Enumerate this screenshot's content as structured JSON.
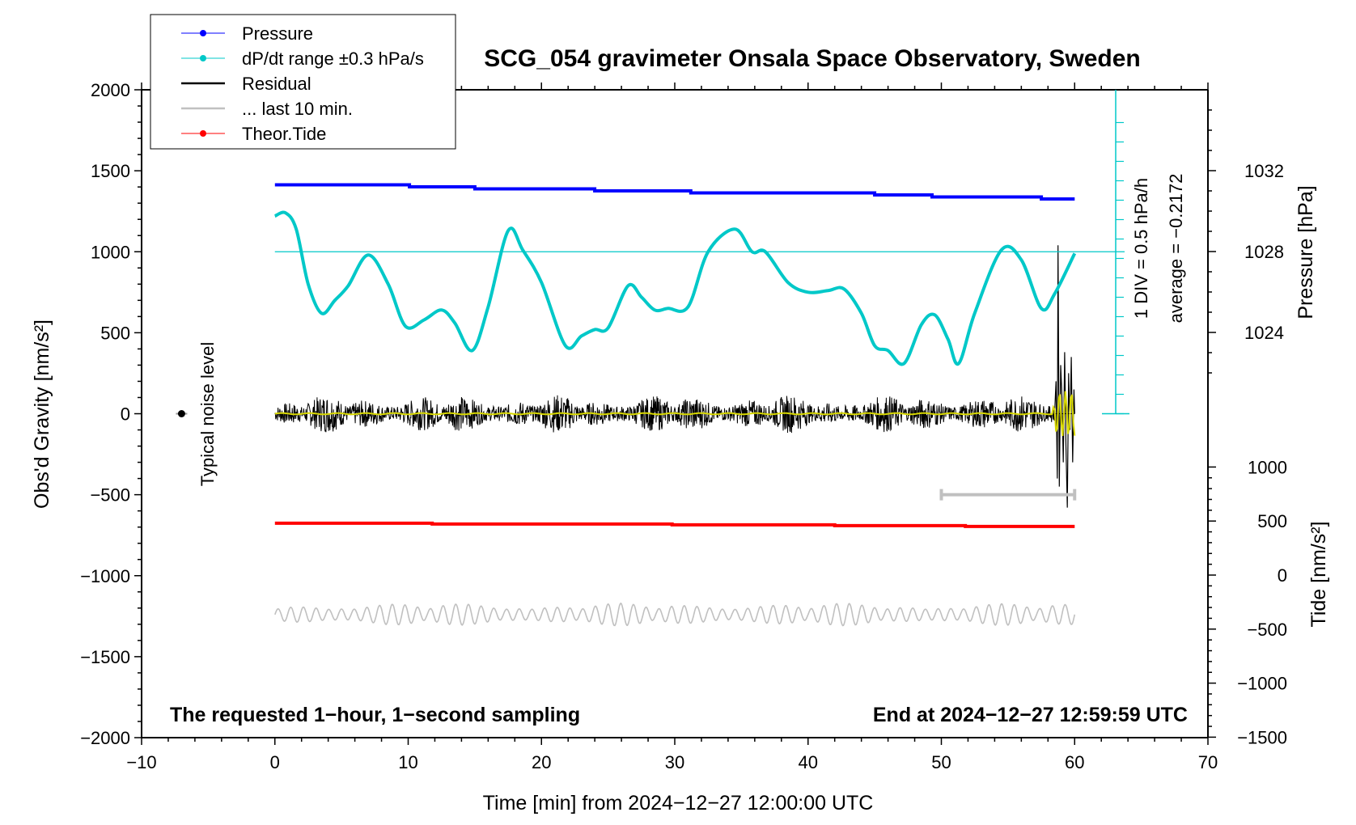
{
  "chart_data": {
    "type": "line",
    "title": "SCG_054 gravimeter Onsala Space Observatory, Sweden",
    "xlabel": "Time [min] from 2024−12−27 12:00:00 UTC",
    "ylabel_left": "Obs'd Gravity [nm/s²]",
    "ylabel_pressure": "Pressure [hPa]",
    "ylabel_tide": "Tide [nm/s²]",
    "xlim": [
      -10,
      70
    ],
    "ylim": [
      -2000,
      2000
    ],
    "x_ticks": [
      "−10",
      "0",
      "10",
      "20",
      "30",
      "40",
      "50",
      "60",
      "70"
    ],
    "y_ticks": [
      "−2000",
      "−1500",
      "−1000",
      "−500",
      "0",
      "500",
      "1000",
      "1500",
      "2000"
    ],
    "pressure_ticks": [
      "1024",
      "1028",
      "1032"
    ],
    "tide_ticks": [
      "−1500",
      "−1000",
      "−500",
      "0",
      "500",
      "1000"
    ],
    "legend_position": "top-left",
    "legend": [
      {
        "label": "Pressure",
        "color": "#0000ff",
        "marker": "dot"
      },
      {
        "label": "dP/dt range ±0.3 hPa/s",
        "color": "#00c8c8",
        "marker": "dot"
      },
      {
        "label": "Residual",
        "color": "#000000",
        "marker": "line"
      },
      {
        "label": "... last 10 min.",
        "color": "#c0c0c0",
        "marker": "line"
      },
      {
        "label": "Theor.Tide",
        "color": "#ff0000",
        "marker": "dot"
      }
    ],
    "series": [
      {
        "name": "Pressure",
        "color": "#0000ff",
        "axis": "pressure",
        "x": [
          0,
          10.1,
          10.1,
          15,
          15,
          24,
          24,
          31.2,
          31.2,
          45,
          45,
          49.3,
          49.3,
          57.5,
          57.5,
          60
        ],
        "values": [
          1031.3,
          1031.3,
          1031.2,
          1031.2,
          1031.1,
          1031.1,
          1031.0,
          1031.0,
          1030.9,
          1030.9,
          1030.8,
          1030.8,
          1030.7,
          1030.7,
          1030.6,
          1030.6
        ]
      },
      {
        "name": "dP/dt range ±0.3 hPa/s",
        "color": "#00c8c8",
        "axis": "gravity",
        "x": [
          0,
          0.8,
          1.6,
          2.5,
          3.5,
          4.5,
          5.5,
          7,
          8.5,
          9.8,
          11.2,
          12.5,
          13.5,
          14.8,
          16,
          17.5,
          18.6,
          20,
          21.8,
          23,
          24,
          25,
          26.5,
          27.5,
          28.5,
          29.5,
          31,
          32.5,
          34.5,
          35.8,
          36.8,
          38.5,
          40,
          41.5,
          42.7,
          44,
          45,
          46,
          47.2,
          48.5,
          49.5,
          50.5,
          51.3,
          52.5,
          54.5,
          56,
          57.5,
          58.5,
          60
        ],
        "values": [
          1220,
          1240,
          1140,
          800,
          620,
          700,
          790,
          980,
          800,
          540,
          580,
          640,
          560,
          390,
          660,
          1130,
          1010,
          810,
          420,
          480,
          520,
          530,
          790,
          720,
          640,
          650,
          660,
          1000,
          1140,
          1000,
          1000,
          810,
          750,
          760,
          770,
          620,
          420,
          390,
          310,
          550,
          610,
          460,
          310,
          620,
          1010,
          950,
          650,
          740,
          990
        ]
      },
      {
        "name": "Residual",
        "color": "#000000",
        "axis": "gravity",
        "x": [
          0,
          60
        ],
        "values": [
          0,
          0
        ],
        "noise_amplitude": 120,
        "burst_start": 58.5,
        "burst_range": [
          -580,
          1040
        ]
      },
      {
        "name": "... last 10 min.",
        "color": "#c0c0c0",
        "axis": "gravity",
        "x": [
          50,
          60
        ],
        "values": [
          -500,
          -500
        ]
      },
      {
        "name": "Theor.Tide",
        "color": "#ff0000",
        "axis": "tide",
        "x": [
          0,
          11.8,
          11.8,
          29.8,
          29.8,
          42,
          42,
          51.8,
          51.8,
          60
        ],
        "values": [
          -676,
          -676,
          -681,
          -681,
          -686,
          -686,
          -691,
          -691,
          -696,
          -696
        ]
      },
      {
        "color": "#c0c0c0",
        "axis": "gravity",
        "x": [
          0,
          60
        ],
        "values": [
          -1240,
          -1240
        ],
        "oscillation_amplitude": 70
      }
    ],
    "dpdt_scale": {
      "label": "1 DIV = 0.5 hPa/h",
      "average": "average = −0.2172",
      "reference_level": 1000
    },
    "noise_marker": {
      "x": -7,
      "y": 0,
      "label": "Typical noise level"
    },
    "notes": {
      "left": "The requested 1−hour, 1−second sampling",
      "right": "End at 2024−12−27 12:59:59 UTC"
    }
  }
}
